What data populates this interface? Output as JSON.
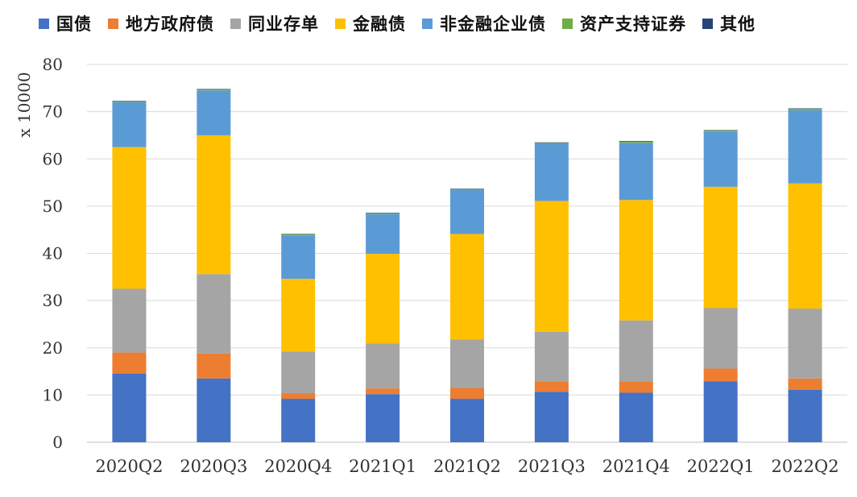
{
  "chart_data": {
    "type": "bar",
    "stacked": true,
    "ylabel": "x 10000",
    "ylim": [
      0,
      80
    ],
    "yticks": [
      "0",
      "10",
      "20",
      "30",
      "40",
      "50",
      "60",
      "70",
      "80"
    ],
    "grid": true,
    "legend_position": "top",
    "categories": [
      "2020Q2",
      "2020Q3",
      "2020Q4",
      "2021Q1",
      "2021Q2",
      "2021Q3",
      "2021Q4",
      "2022Q1",
      "2022Q2"
    ],
    "series": [
      {
        "name": "国债",
        "color": "#4472C4",
        "values": [
          14.5,
          13.5,
          9.2,
          10.2,
          9.2,
          10.7,
          10.5,
          12.9,
          11.1
        ]
      },
      {
        "name": "地方政府债",
        "color": "#ED7D31",
        "values": [
          4.5,
          5.3,
          1.2,
          1.2,
          2.3,
          2.2,
          2.3,
          2.7,
          2.4
        ]
      },
      {
        "name": "同业存单",
        "color": "#A5A5A5",
        "values": [
          13.5,
          16.8,
          8.8,
          9.5,
          10.3,
          10.5,
          13.0,
          12.8,
          14.8
        ]
      },
      {
        "name": "金融债",
        "color": "#FFC000",
        "values": [
          30.0,
          29.4,
          15.4,
          19.0,
          22.3,
          27.7,
          25.5,
          25.7,
          26.5
        ]
      },
      {
        "name": "非金融企业债",
        "color": "#5B9BD5",
        "values": [
          9.5,
          9.5,
          9.2,
          8.4,
          9.3,
          12.1,
          12.1,
          11.6,
          15.5
        ]
      },
      {
        "name": "资产支持证券",
        "color": "#70AD47",
        "values": [
          0.2,
          0.2,
          0.2,
          0.2,
          0.2,
          0.2,
          0.3,
          0.3,
          0.3
        ]
      },
      {
        "name": "其他",
        "color": "#264478",
        "values": [
          0.1,
          0.1,
          0.1,
          0.1,
          0.1,
          0.1,
          0.1,
          0.1,
          0.1
        ]
      }
    ]
  }
}
